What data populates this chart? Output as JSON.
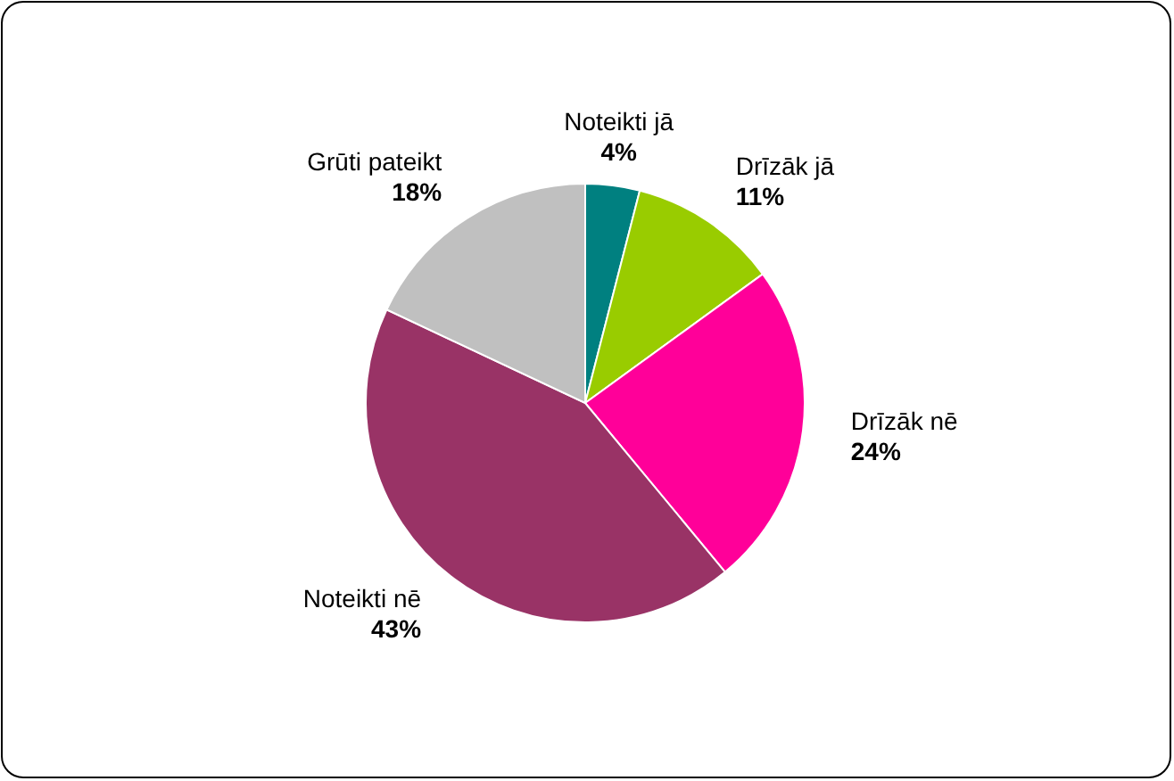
{
  "chart_data": {
    "type": "pie",
    "categories": [
      "Noteikti jā",
      "Drīzāk jā",
      "Drīzāk nē",
      "Noteikti nē",
      "Grūti pateikt"
    ],
    "values": [
      4,
      11,
      24,
      43,
      18
    ],
    "colors": [
      "#008080",
      "#99cc00",
      "#ff0099",
      "#993366",
      "#c0c0c0"
    ],
    "value_labels": [
      "4%",
      "11%",
      "24%",
      "43%",
      "18%"
    ]
  }
}
